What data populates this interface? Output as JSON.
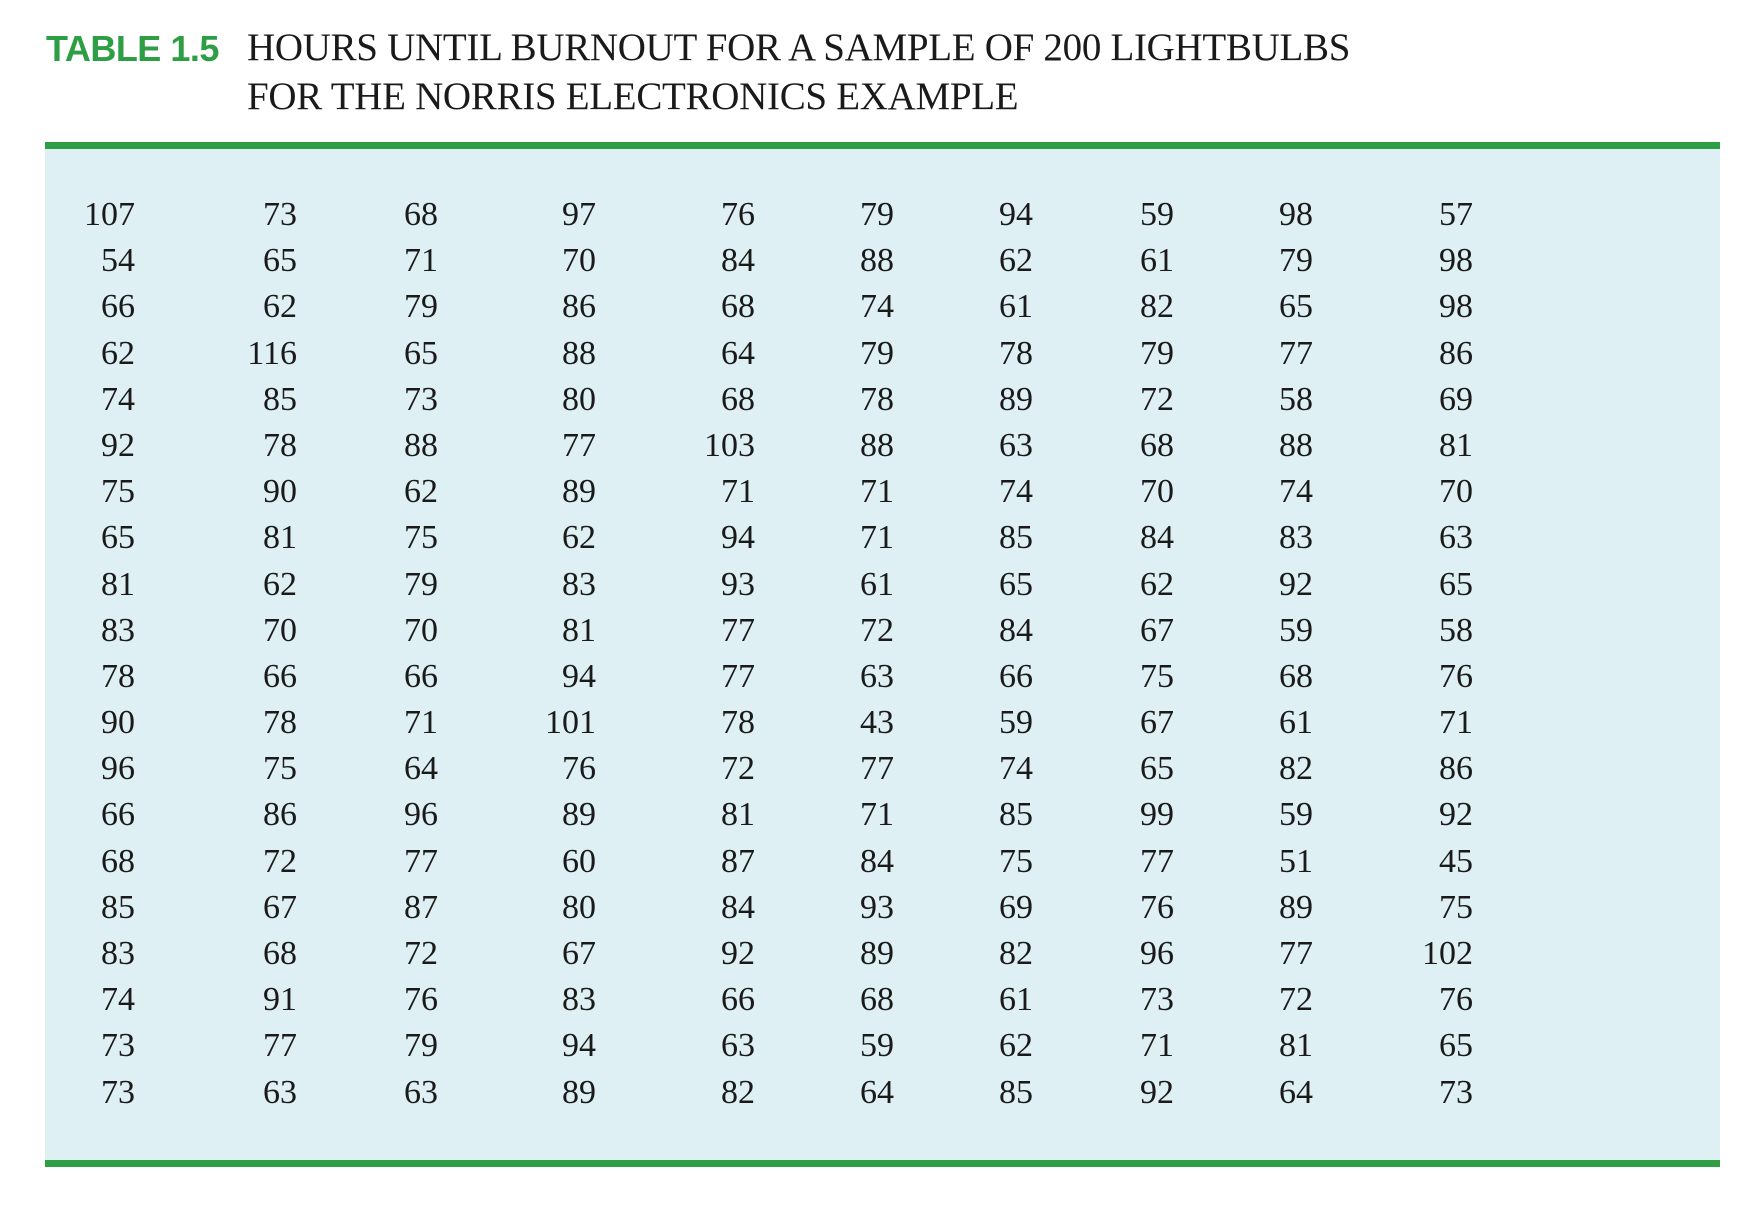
{
  "table": {
    "label": "TABLE 1.5",
    "title_line1": "HOURS UNTIL BURNOUT FOR A SAMPLE OF 200 LIGHTBULBS",
    "title_line2": "FOR THE NORRIS ELECTRONICS EXAMPLE",
    "rows": [
      [
        "107",
        "73",
        "68",
        "97",
        "76",
        "79",
        "94",
        "59",
        "98",
        "57"
      ],
      [
        "54",
        "65",
        "71",
        "70",
        "84",
        "88",
        "62",
        "61",
        "79",
        "98"
      ],
      [
        "66",
        "62",
        "79",
        "86",
        "68",
        "74",
        "61",
        "82",
        "65",
        "98"
      ],
      [
        "62",
        "116",
        "65",
        "88",
        "64",
        "79",
        "78",
        "79",
        "77",
        "86"
      ],
      [
        "74",
        "85",
        "73",
        "80",
        "68",
        "78",
        "89",
        "72",
        "58",
        "69"
      ],
      [
        "92",
        "78",
        "88",
        "77",
        "103",
        "88",
        "63",
        "68",
        "88",
        "81"
      ],
      [
        "75",
        "90",
        "62",
        "89",
        "71",
        "71",
        "74",
        "70",
        "74",
        "70"
      ],
      [
        "65",
        "81",
        "75",
        "62",
        "94",
        "71",
        "85",
        "84",
        "83",
        "63"
      ],
      [
        "81",
        "62",
        "79",
        "83",
        "93",
        "61",
        "65",
        "62",
        "92",
        "65"
      ],
      [
        "83",
        "70",
        "70",
        "81",
        "77",
        "72",
        "84",
        "67",
        "59",
        "58"
      ],
      [
        "78",
        "66",
        "66",
        "94",
        "77",
        "63",
        "66",
        "75",
        "68",
        "76"
      ],
      [
        "90",
        "78",
        "71",
        "101",
        "78",
        "43",
        "59",
        "67",
        "61",
        "71"
      ],
      [
        "96",
        "75",
        "64",
        "76",
        "72",
        "77",
        "74",
        "65",
        "82",
        "86"
      ],
      [
        "66",
        "86",
        "96",
        "89",
        "81",
        "71",
        "85",
        "99",
        "59",
        "92"
      ],
      [
        "68",
        "72",
        "77",
        "60",
        "87",
        "84",
        "75",
        "77",
        "51",
        "45"
      ],
      [
        "85",
        "67",
        "87",
        "80",
        "84",
        "93",
        "69",
        "76",
        "89",
        "75"
      ],
      [
        "83",
        "68",
        "72",
        "67",
        "92",
        "89",
        "82",
        "96",
        "77",
        "102"
      ],
      [
        "74",
        "91",
        "76",
        "83",
        "66",
        "68",
        "61",
        "73",
        "72",
        "76"
      ],
      [
        "73",
        "77",
        "79",
        "94",
        "63",
        "59",
        "62",
        "71",
        "81",
        "65"
      ],
      [
        "73",
        "63",
        "63",
        "89",
        "82",
        "64",
        "85",
        "92",
        "64",
        "73"
      ]
    ]
  },
  "colors": {
    "accent_green": "#2e9e45",
    "panel_background": "#dff0f4",
    "text": "#1a1a1a"
  }
}
